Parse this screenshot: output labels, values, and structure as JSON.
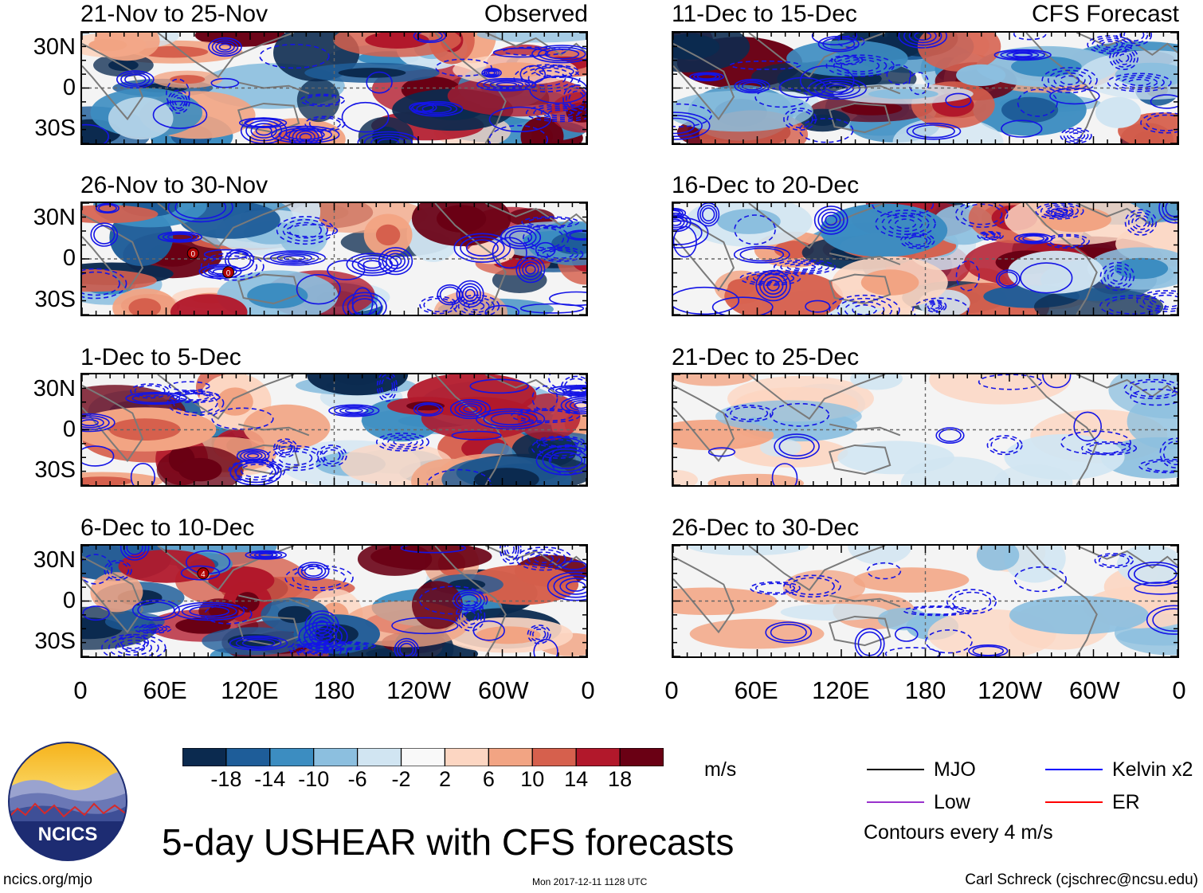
{
  "chart_data": {
    "type": "heatmap",
    "title": "5-day USHEAR with CFS forecasts",
    "units": "m/s",
    "xticks": [
      "0",
      "60E",
      "120E",
      "180",
      "120W",
      "60W",
      "0"
    ],
    "yticks": [
      "30N",
      "0",
      "30S"
    ],
    "colorbar": {
      "labels": [
        "-18",
        "-14",
        "-10",
        "-6",
        "-2",
        "2",
        "6",
        "10",
        "14",
        "18"
      ],
      "colors": [
        "#0b2a4f",
        "#1e5d99",
        "#3c8dc1",
        "#8cbfdf",
        "#d1e5f2",
        "#f9f9f9",
        "#fcd6c2",
        "#f2a483",
        "#d6604d",
        "#b2182b",
        "#6a0014"
      ]
    },
    "panels": [
      {
        "title": "21-Nov to 25-Nov",
        "label": "Observed",
        "column": "left",
        "row": 1
      },
      {
        "title": "26-Nov to 30-Nov",
        "label": "",
        "column": "left",
        "row": 2
      },
      {
        "title": "1-Dec to 5-Dec",
        "label": "",
        "column": "left",
        "row": 3
      },
      {
        "title": "6-Dec to 10-Dec",
        "label": "",
        "column": "left",
        "row": 4
      },
      {
        "title": "11-Dec to 15-Dec",
        "label": "CFS Forecast",
        "column": "right",
        "row": 1
      },
      {
        "title": "16-Dec to 20-Dec",
        "label": "",
        "column": "right",
        "row": 2
      },
      {
        "title": "21-Dec to 25-Dec",
        "label": "",
        "column": "right",
        "row": 3
      },
      {
        "title": "26-Dec to 30-Dec",
        "label": "",
        "column": "right",
        "row": 4
      }
    ],
    "storm_markers": [
      {
        "panel": 1,
        "label": "0"
      },
      {
        "panel": 1,
        "label": "0"
      },
      {
        "panel": 3,
        "label": "4"
      }
    ]
  },
  "legend": {
    "items": [
      {
        "name": "MJO",
        "color": "#000000"
      },
      {
        "name": "Kelvin x2",
        "color": "#0000ff"
      },
      {
        "name": "Low",
        "color": "#9932cc"
      },
      {
        "name": "ER",
        "color": "#ff0000"
      }
    ],
    "note": "Contours every 4 m/s"
  },
  "footer": {
    "logo_text": "NCICS",
    "url": "ncics.org/mjo",
    "timestamp": "Mon 2017-12-11 1128 UTC",
    "credit": "Carl Schreck (cjschrec@ncsu.edu)"
  }
}
